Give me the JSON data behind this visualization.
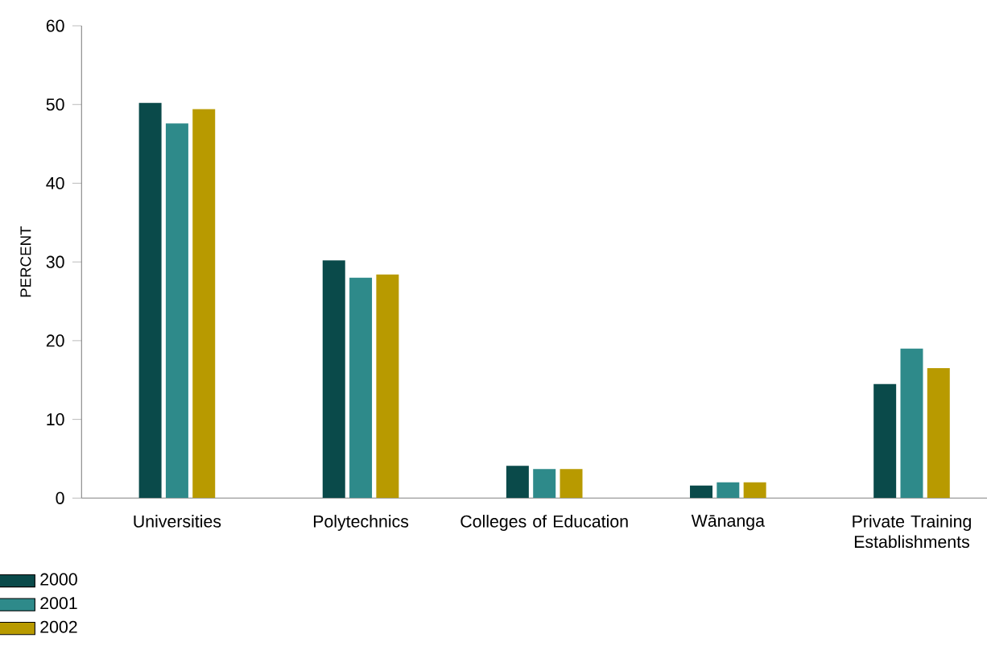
{
  "chart_data": {
    "type": "bar",
    "ylabel": "PERCENT",
    "categories": [
      "Universities",
      "Polytechnics",
      "Colleges of Education",
      "Wānanga",
      "Private Training Establishments"
    ],
    "series": [
      {
        "name": "2000",
        "color": "#0a4a4a",
        "values": [
          50.2,
          30.2,
          4.1,
          1.6,
          14.5
        ]
      },
      {
        "name": "2001",
        "color": "#2e8a8a",
        "values": [
          47.6,
          28.0,
          3.7,
          2.0,
          19.0
        ]
      },
      {
        "name": "2002",
        "color": "#b89a00",
        "values": [
          49.4,
          28.4,
          3.7,
          2.0,
          16.5
        ]
      }
    ],
    "ylim": [
      0,
      60
    ],
    "yticks": [
      0,
      10,
      20,
      30,
      40,
      50,
      60
    ],
    "grid": false,
    "legend": "bottom left"
  }
}
